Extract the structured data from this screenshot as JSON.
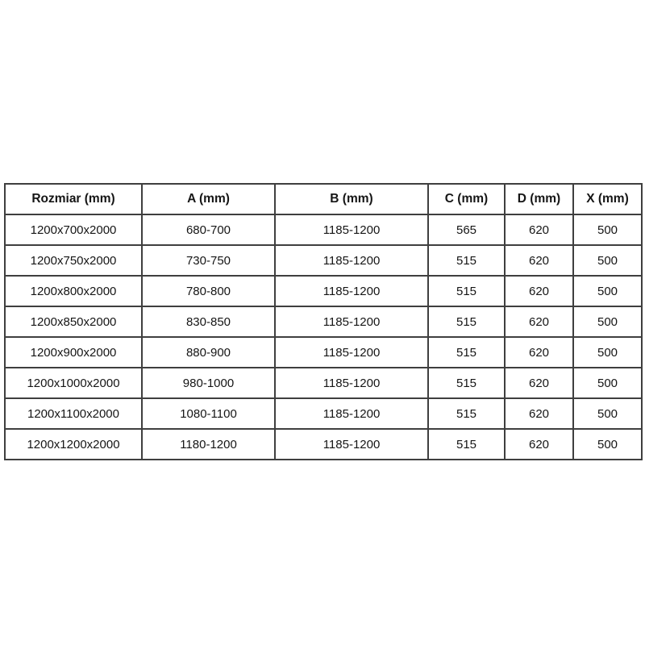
{
  "colors": {
    "background": "#ffffff",
    "border": "#3f3f3f",
    "text": "#151515"
  },
  "table": {
    "headers": [
      "Rozmiar (mm)",
      "A (mm)",
      "B (mm)",
      "C (mm)",
      "D (mm)",
      "X (mm)"
    ],
    "rows": [
      [
        "1200x700x2000",
        "680-700",
        "1185-1200",
        "565",
        "620",
        "500"
      ],
      [
        "1200x750x2000",
        "730-750",
        "1185-1200",
        "515",
        "620",
        "500"
      ],
      [
        "1200x800x2000",
        "780-800",
        "1185-1200",
        "515",
        "620",
        "500"
      ],
      [
        "1200x850x2000",
        "830-850",
        "1185-1200",
        "515",
        "620",
        "500"
      ],
      [
        "1200x900x2000",
        "880-900",
        "1185-1200",
        "515",
        "620",
        "500"
      ],
      [
        "1200x1000x2000",
        "980-1000",
        "1185-1200",
        "515",
        "620",
        "500"
      ],
      [
        "1200x1100x2000",
        "1080-1100",
        "1185-1200",
        "515",
        "620",
        "500"
      ],
      [
        "1200x1200x2000",
        "1180-1200",
        "1185-1200",
        "515",
        "620",
        "500"
      ]
    ]
  }
}
